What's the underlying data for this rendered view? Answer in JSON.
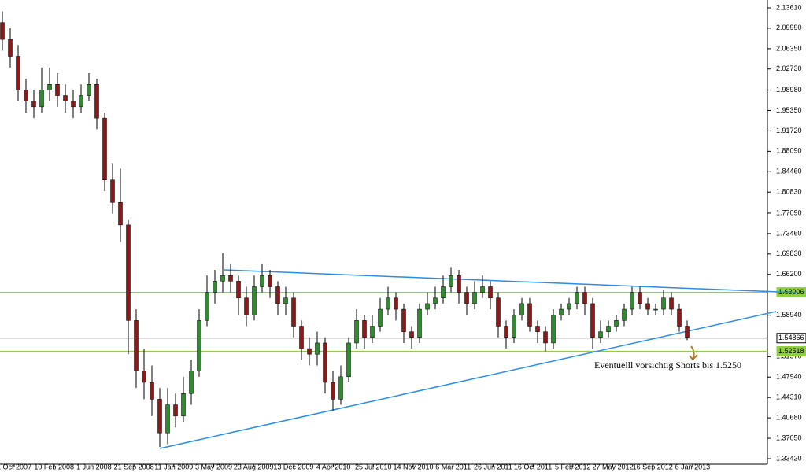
{
  "chart_data": {
    "type": "candlestick",
    "x_labels": [
      "1 Oct 2007",
      "10 Feb 2008",
      "1 Jun 2008",
      "21 Sep 2008",
      "11 Jan 2009",
      "3 May 2009",
      "23 Aug 2009",
      "13 Dec 2009",
      "4 Apr 2010",
      "25 Jul 2010",
      "14 Nov 2010",
      "6 Mar 2011",
      "26 Jun 2011",
      "16 Oct 2011",
      "5 Feb 2012",
      "27 May 2012",
      "16 Sep 2012",
      "6 Jan 2013"
    ],
    "open": [
      2.11,
      2.08,
      2.05,
      1.99,
      1.97,
      1.96,
      1.99,
      2.0,
      1.98,
      1.97,
      1.96,
      1.98,
      2.0,
      1.94,
      1.83,
      1.79,
      1.75,
      1.58,
      1.49,
      1.47,
      1.44,
      1.38,
      1.43,
      1.41,
      1.45,
      1.49,
      1.58,
      1.63,
      1.65,
      1.66,
      1.65,
      1.62,
      1.59,
      1.64,
      1.66,
      1.64,
      1.61,
      1.62,
      1.57,
      1.53,
      1.52,
      1.54,
      1.47,
      1.44,
      1.48,
      1.54,
      1.58,
      1.55,
      1.57,
      1.6,
      1.62,
      1.6,
      1.56,
      1.55,
      1.6,
      1.61,
      1.62,
      1.64,
      1.66,
      1.63,
      1.61,
      1.63,
      1.64,
      1.62,
      1.57,
      1.55,
      1.59,
      1.61,
      1.57,
      1.56,
      1.54,
      1.59,
      1.6,
      1.61,
      1.63,
      1.61,
      1.55,
      1.56,
      1.57,
      1.58,
      1.6,
      1.63,
      1.61,
      1.6,
      1.6,
      1.62,
      1.6,
      1.57
    ],
    "high": [
      2.13,
      2.1,
      2.07,
      2.01,
      1.99,
      2.03,
      2.03,
      2.02,
      2.0,
      1.99,
      2.0,
      2.02,
      2.01,
      1.95,
      1.86,
      1.85,
      1.76,
      1.6,
      1.53,
      1.5,
      1.46,
      1.46,
      1.45,
      1.48,
      1.51,
      1.6,
      1.66,
      1.67,
      1.7,
      1.68,
      1.66,
      1.64,
      1.66,
      1.68,
      1.67,
      1.65,
      1.64,
      1.63,
      1.58,
      1.55,
      1.56,
      1.55,
      1.49,
      1.5,
      1.55,
      1.6,
      1.59,
      1.59,
      1.62,
      1.64,
      1.63,
      1.61,
      1.57,
      1.61,
      1.63,
      1.64,
      1.66,
      1.675,
      1.67,
      1.64,
      1.65,
      1.66,
      1.65,
      1.63,
      1.58,
      1.6,
      1.62,
      1.62,
      1.58,
      1.57,
      1.6,
      1.61,
      1.62,
      1.64,
      1.64,
      1.62,
      1.58,
      1.58,
      1.59,
      1.61,
      1.64,
      1.64,
      1.62,
      1.61,
      1.635,
      1.63,
      1.61,
      1.58
    ],
    "low": [
      2.06,
      2.03,
      1.97,
      1.95,
      1.94,
      1.95,
      1.97,
      1.96,
      1.95,
      1.94,
      1.95,
      1.97,
      1.92,
      1.81,
      1.77,
      1.72,
      1.52,
      1.46,
      1.44,
      1.41,
      1.355,
      1.36,
      1.39,
      1.4,
      1.43,
      1.48,
      1.57,
      1.61,
      1.63,
      1.63,
      1.59,
      1.57,
      1.58,
      1.63,
      1.62,
      1.59,
      1.59,
      1.55,
      1.51,
      1.5,
      1.5,
      1.45,
      1.42,
      1.43,
      1.47,
      1.53,
      1.53,
      1.54,
      1.56,
      1.59,
      1.58,
      1.54,
      1.53,
      1.54,
      1.59,
      1.6,
      1.61,
      1.63,
      1.61,
      1.59,
      1.6,
      1.62,
      1.6,
      1.55,
      1.53,
      1.54,
      1.58,
      1.56,
      1.54,
      1.525,
      1.53,
      1.58,
      1.59,
      1.6,
      1.59,
      1.53,
      1.54,
      1.55,
      1.56,
      1.57,
      1.59,
      1.6,
      1.59,
      1.59,
      1.59,
      1.59,
      1.56,
      1.545
    ],
    "close": [
      2.08,
      2.05,
      1.99,
      1.97,
      1.96,
      1.99,
      2.0,
      1.98,
      1.97,
      1.96,
      1.98,
      2.0,
      1.94,
      1.83,
      1.79,
      1.75,
      1.58,
      1.49,
      1.47,
      1.44,
      1.38,
      1.43,
      1.41,
      1.45,
      1.49,
      1.58,
      1.63,
      1.65,
      1.66,
      1.65,
      1.62,
      1.59,
      1.64,
      1.66,
      1.64,
      1.61,
      1.62,
      1.57,
      1.53,
      1.52,
      1.54,
      1.47,
      1.44,
      1.48,
      1.54,
      1.58,
      1.55,
      1.57,
      1.6,
      1.62,
      1.6,
      1.56,
      1.55,
      1.6,
      1.61,
      1.62,
      1.64,
      1.66,
      1.63,
      1.61,
      1.63,
      1.64,
      1.62,
      1.57,
      1.55,
      1.59,
      1.61,
      1.57,
      1.56,
      1.54,
      1.59,
      1.6,
      1.61,
      1.63,
      1.61,
      1.55,
      1.56,
      1.57,
      1.58,
      1.6,
      1.63,
      1.61,
      1.6,
      1.6,
      1.62,
      1.6,
      1.57,
      1.55
    ],
    "up_color": "#2e8b2e",
    "down_color": "#8b1a1a",
    "ylim": [
      1.3244,
      2.1501
    ],
    "yticks": [
      {
        "value": 2.1361,
        "label": "2.13610"
      },
      {
        "value": 2.0999,
        "label": "2.09990"
      },
      {
        "value": 2.0635,
        "label": "2.06350"
      },
      {
        "value": 2.0273,
        "label": "2.02730"
      },
      {
        "value": 1.9898,
        "label": "1.98980"
      },
      {
        "value": 1.9535,
        "label": "1.95350"
      },
      {
        "value": 1.9172,
        "label": "1.91720"
      },
      {
        "value": 1.8809,
        "label": "1.88090"
      },
      {
        "value": 1.8446,
        "label": "1.84460"
      },
      {
        "value": 1.8083,
        "label": "1.80830"
      },
      {
        "value": 1.7709,
        "label": "1.77090"
      },
      {
        "value": 1.7346,
        "label": "1.73460"
      },
      {
        "value": 1.6983,
        "label": "1.69830"
      },
      {
        "value": 1.662,
        "label": "1.66200"
      },
      {
        "value": 1.5894,
        "label": "1.58940"
      },
      {
        "value": 1.5157,
        "label": "1.51570"
      },
      {
        "value": 1.4794,
        "label": "1.47940"
      },
      {
        "value": 1.4431,
        "label": "1.44310"
      },
      {
        "value": 1.4068,
        "label": "1.40680"
      },
      {
        "value": 1.3705,
        "label": "1.37050"
      },
      {
        "value": 1.3342,
        "label": "1.33420"
      }
    ],
    "levels": [
      {
        "value": 1.63006,
        "color": "#8fce3f"
      },
      {
        "value": 1.52518,
        "color": "#8fce3f"
      },
      {
        "value": 1.54866,
        "color": "#a0a0a0"
      }
    ],
    "trendlines": [
      {
        "start": 1.67,
        "end": 1.6295,
        "color": "#2a8ce8"
      },
      {
        "start": 1.3524,
        "end": 1.596,
        "color": "#2a8ce8"
      }
    ],
    "annotation": "Eventuelll vorsichtig Shorts bis 1.5250"
  }
}
